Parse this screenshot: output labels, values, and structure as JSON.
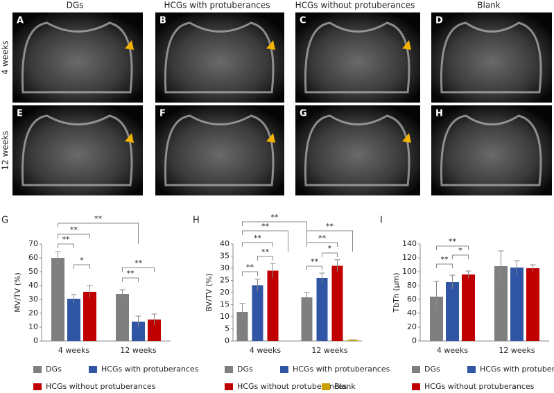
{
  "figure": {
    "columns": [
      "DGs",
      "HCGs with protuberances",
      "HCGs without protuberances",
      "Blank"
    ],
    "rows": [
      "4 weeks",
      "12 weeks"
    ],
    "panels": [
      "A",
      "B",
      "C",
      "D",
      "E",
      "F",
      "G",
      "H"
    ]
  },
  "chart_data": [
    {
      "type": "bar",
      "panel": "G",
      "ylabel": "MV/TV (%)",
      "categories": [
        "4 weeks",
        "12 weeks"
      ],
      "series": [
        {
          "name": "DGs",
          "color": "#7f7f7f",
          "values": [
            60,
            34
          ],
          "errors": [
            4.5,
            3
          ]
        },
        {
          "name": "HCGs with protuberances",
          "color": "#2f55a4",
          "values": [
            30.5,
            14
          ],
          "errors": [
            3,
            4
          ]
        },
        {
          "name": "HCGs without protuberances",
          "color": "#c00000",
          "values": [
            35.5,
            15.5
          ],
          "errors": [
            4.5,
            4
          ]
        }
      ],
      "ylim": [
        0,
        70
      ],
      "yticks": [
        0,
        10,
        20,
        30,
        40,
        50,
        60,
        70
      ],
      "annotations": [
        "**",
        "**",
        "**",
        "*",
        "**",
        "**"
      ]
    },
    {
      "type": "bar",
      "panel": "H",
      "ylabel": "BV/TV (%)",
      "categories": [
        "4 weeks",
        "12 weeks"
      ],
      "series": [
        {
          "name": "DGs",
          "color": "#7f7f7f",
          "values": [
            12,
            18
          ],
          "errors": [
            3.5,
            2
          ]
        },
        {
          "name": "HCGs with protuberances",
          "color": "#2f55a4",
          "values": [
            23,
            26
          ],
          "errors": [
            2.5,
            2
          ]
        },
        {
          "name": "HCGs without protuberances",
          "color": "#c00000",
          "values": [
            29,
            31
          ],
          "errors": [
            3,
            2.5
          ]
        },
        {
          "name": "Blank",
          "color": "#c9a100",
          "values": [
            null,
            0.5
          ],
          "errors": [
            null,
            0
          ]
        }
      ],
      "ylim": [
        0,
        40
      ],
      "yticks": [
        0,
        5,
        10,
        15,
        20,
        25,
        30,
        35,
        40
      ],
      "annotations": [
        "**",
        "**",
        "**",
        "**",
        "**",
        "**",
        "**",
        "*",
        "**"
      ]
    },
    {
      "type": "bar",
      "panel": "I",
      "ylabel": "TbTh (μm)",
      "categories": [
        "4 weeks",
        "12 weeks"
      ],
      "series": [
        {
          "name": "DGs",
          "color": "#7f7f7f",
          "values": [
            64,
            108
          ],
          "errors": [
            22,
            22
          ]
        },
        {
          "name": "HCGs with protuberances",
          "color": "#2f55a4",
          "values": [
            85,
            106
          ],
          "errors": [
            10,
            10
          ]
        },
        {
          "name": "HCGs without protuberances",
          "color": "#c00000",
          "values": [
            96,
            105
          ],
          "errors": [
            5,
            5
          ]
        }
      ],
      "ylim": [
        0,
        140
      ],
      "yticks": [
        0,
        20,
        40,
        60,
        80,
        100,
        120,
        140
      ],
      "annotations": [
        "**",
        "**",
        "*"
      ]
    }
  ]
}
